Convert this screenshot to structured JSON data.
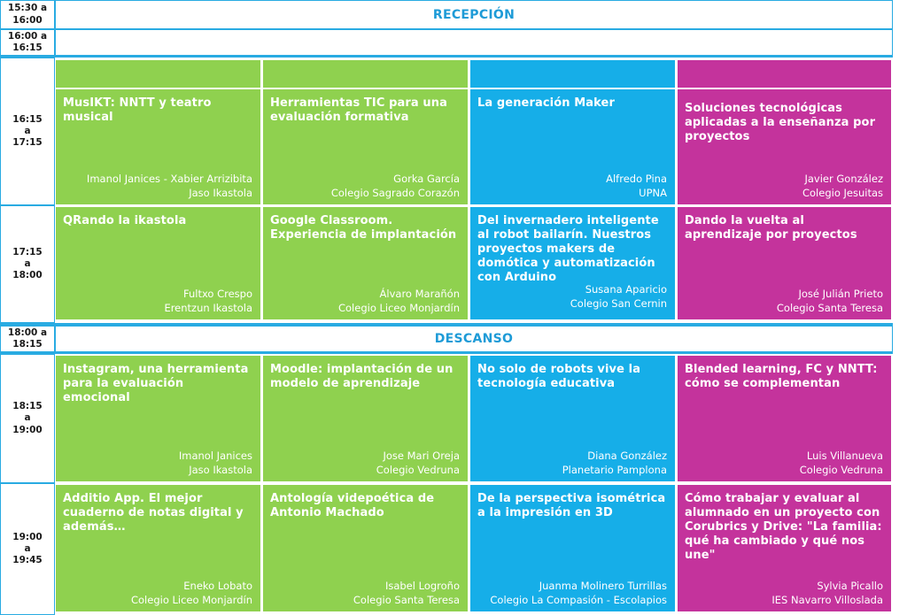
{
  "times": {
    "t1": "15:30 a\n16:00",
    "t2": "16:00 a\n16:15",
    "t3": "16:15\na\n17:15",
    "t4": "17:15\na\n18:00",
    "t5": "18:00 a\n18:15",
    "t6": "18:15\na\n19:00",
    "t7": "19:00\na\n19:45"
  },
  "banners": {
    "reception": "RECEPCIÓN",
    "break": "DESCANSO"
  },
  "colors": {
    "track1": "#8fd14f",
    "track2": "#8fd14f",
    "track3": "#16aee8",
    "track4": "#c4339c",
    "border": "#29abe2"
  },
  "sessions": {
    "s1": [
      {
        "title": "MusIKT: NNTT y teatro musical",
        "speaker": "Imanol Janices - Xabier Arrizibita",
        "org": "Jaso Ikastola"
      },
      {
        "title": "Herramientas TIC para una evaluación formativa",
        "speaker": "Gorka García",
        "org": "Colegio Sagrado Corazón"
      },
      {
        "title": "La generación Maker",
        "speaker": "Alfredo Pina",
        "org": "UPNA"
      },
      {
        "title": "Soluciones tecnológicas aplicadas a la enseñanza por proyectos",
        "speaker": "Javier González",
        "org": "Colegio Jesuitas"
      }
    ],
    "s2": [
      {
        "title": "QRando la ikastola",
        "speaker": "Fultxo Crespo",
        "org": "Erentzun Ikastola"
      },
      {
        "title": "Google Classroom. Experiencia de implantación",
        "speaker": "Álvaro Marañón",
        "org": "Colegio Liceo Monjardín"
      },
      {
        "title": "Del invernadero inteligente al robot bailarín. Nuestros proyectos makers de domótica y automatización con Arduino",
        "speaker": "Susana Aparicio",
        "org": "Colegio San Cernin"
      },
      {
        "title": "Dando la vuelta al aprendizaje por proyectos",
        "speaker": "José Julián Prieto",
        "org": "Colegio Santa Teresa"
      }
    ],
    "s3": [
      {
        "title": "Instagram, una herramienta para la evaluación emocional",
        "speaker": "Imanol Janices",
        "org": "Jaso Ikastola"
      },
      {
        "title": "Moodle: implantación de un modelo de aprendizaje",
        "speaker": "Jose Mari Oreja",
        "org": "Colegio Vedruna"
      },
      {
        "title": "No solo de robots vive la tecnología educativa",
        "speaker": "Diana González",
        "org": "Planetario Pamplona"
      },
      {
        "title": "Blended learning, FC y NNTT: cómo se complementan",
        "speaker": "Luis Villanueva",
        "org": "Colegio Vedruna"
      }
    ],
    "s4": [
      {
        "title": "Additio App. El mejor cuaderno de notas digital y además…",
        "speaker": "Eneko Lobato",
        "org": "Colegio Liceo Monjardín"
      },
      {
        "title": "Antología videpoética de Antonio Machado",
        "speaker": "Isabel Logroño",
        "org": "Colegio Santa Teresa"
      },
      {
        "title": "De la perspectiva isométrica a la impresión en 3D",
        "speaker": "Juanma Molinero Turrillas",
        "org": "Colegio La Compasión - Escolapios"
      },
      {
        "title": "Cómo trabajar y evaluar al alumnado en un proyecto con Corubrics y Drive: \"La familia: qué ha cambiado y qué nos une\"",
        "speaker": "Sylvia Picallo",
        "org": "IES Navarro Villoslada"
      }
    ]
  }
}
